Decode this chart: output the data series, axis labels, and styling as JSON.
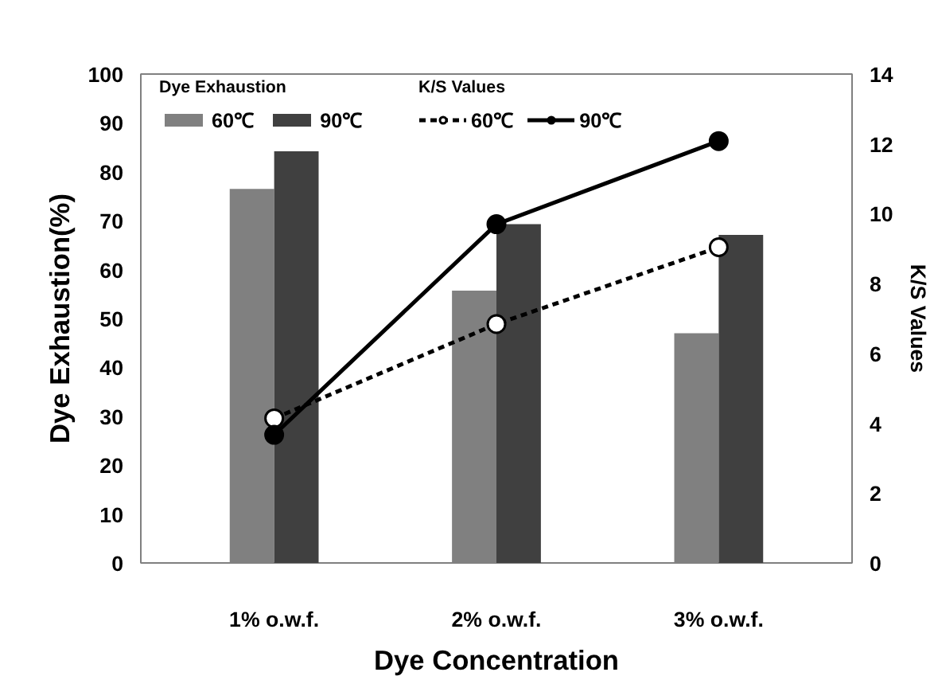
{
  "chart_data": {
    "type": "bar",
    "xlabel": "Dye Concentration",
    "ylabel": "Dye Exhaustion(%)",
    "y2label": "K/S Values",
    "legend_title": [
      "Dye Exhaustion",
      "K/S Values"
    ],
    "categories": [
      "1% o.w.f.",
      "2% o.w.f.",
      "3% o.w.f."
    ],
    "ylim": [
      0,
      100
    ],
    "yticks": [
      0,
      10,
      20,
      30,
      40,
      50,
      60,
      70,
      80,
      90,
      100
    ],
    "y2lim": [
      0,
      14
    ],
    "y2ticks": [
      0,
      2,
      4,
      6,
      8,
      10,
      12,
      14
    ],
    "grid": false,
    "legend": "top",
    "series": [
      {
        "name": "60℃",
        "color": "#808080",
        "values": [
          76.5,
          55.7,
          47.0
        ]
      },
      {
        "name": "90℃",
        "color": "#404040",
        "values": [
          84.2,
          69.3,
          67.1
        ]
      },
      {
        "name": "60℃",
        "type": "line",
        "axis": "y2",
        "color": "#000000",
        "marker": "circle",
        "colors": [
          "#ffffff",
          "#ffffff",
          "#ffffff"
        ],
        "line_style": "dashed",
        "values": [
          4.14,
          6.84,
          9.04
        ]
      },
      {
        "name": "90℃",
        "type": "line",
        "axis": "y2",
        "color": "#000000",
        "marker": "circle",
        "colors": [
          "#000000",
          "#000000",
          "#000000"
        ],
        "line_style": "solid",
        "values": [
          3.67,
          9.7,
          12.08
        ]
      }
    ]
  }
}
